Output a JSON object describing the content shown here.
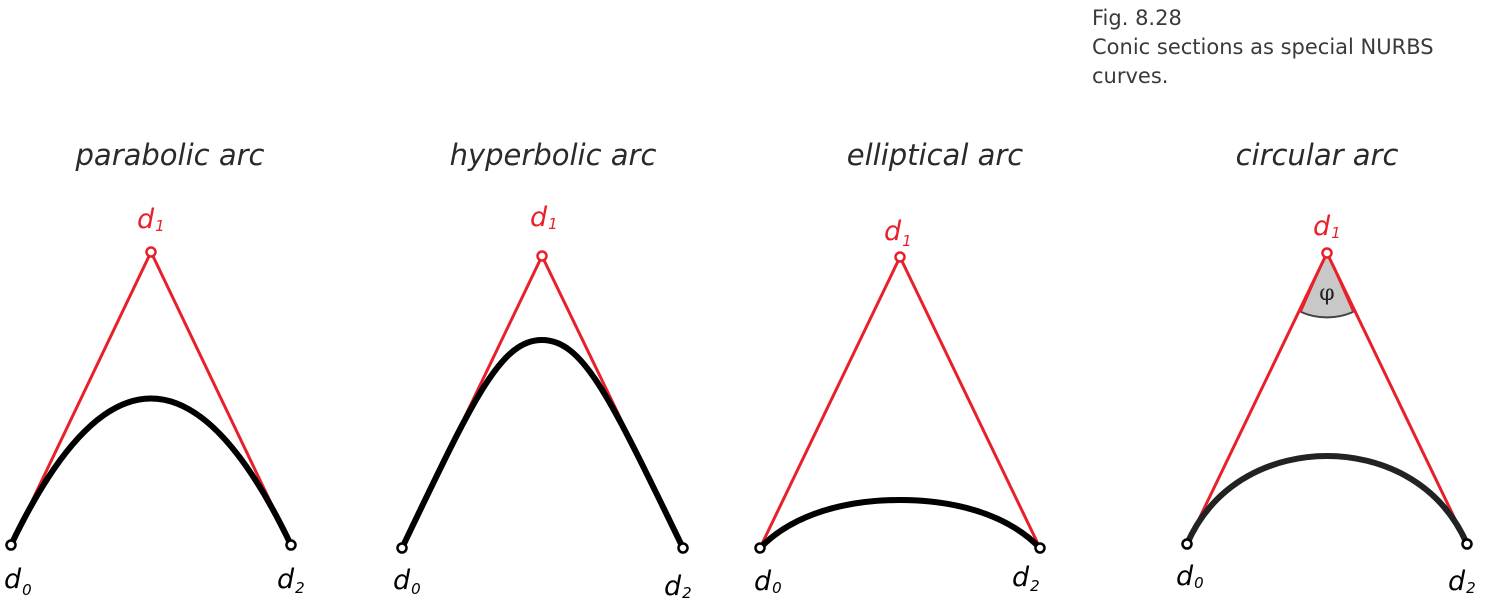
{
  "caption": {
    "line1": "Fig. 8.28",
    "line2": "Conic sections as special NURBS",
    "line3": "curves."
  },
  "colors": {
    "control_polygon": "#e8202a",
    "curve": "#000000",
    "angle_fill": "#c8c8c8"
  },
  "panels": [
    {
      "title": "parabolic arc",
      "labels": {
        "d0": "d",
        "d0_sub": "0",
        "d1": "d",
        "d1_sub": "1",
        "d2": "d",
        "d2_sub": "2"
      }
    },
    {
      "title": "hyperbolic arc",
      "labels": {
        "d0": "d",
        "d0_sub": "0",
        "d1": "d",
        "d1_sub": "1",
        "d2": "d",
        "d2_sub": "2"
      }
    },
    {
      "title": "elliptical arc",
      "labels": {
        "d0": "d",
        "d0_sub": "0",
        "d1": "d",
        "d1_sub": "1",
        "d2": "d",
        "d2_sub": "2"
      }
    },
    {
      "title": "circular arc",
      "labels": {
        "d0": "d",
        "d0_sub": "0",
        "d1": "d",
        "d1_sub": "1",
        "d2": "d",
        "d2_sub": "2"
      },
      "angle_symbol": "φ"
    }
  ]
}
